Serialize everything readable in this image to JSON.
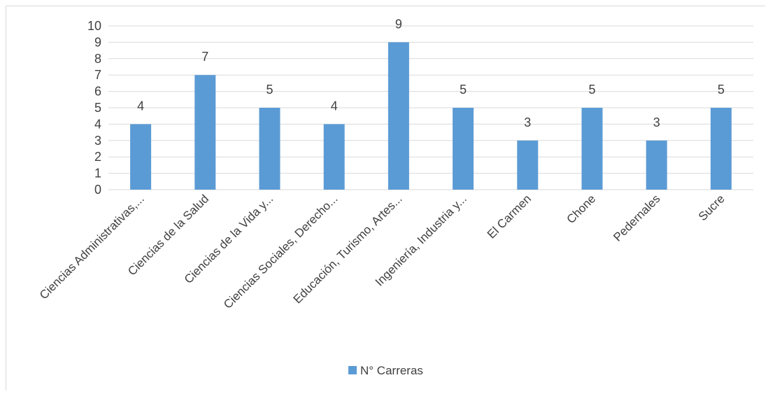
{
  "chart_data": {
    "type": "bar",
    "title": "",
    "xlabel": "",
    "ylabel": "",
    "categories": [
      "Ciencias Administrativas,...",
      "Ciencias de la Salud",
      "Ciencias de la Vida y...",
      "Ciencias Sociales, Derecho...",
      "Educación, Turismo, Artes...",
      "Ingeniería, Industria y...",
      "El Carmen",
      "Chone",
      "Pedernales",
      "Sucre"
    ],
    "series": [
      {
        "name": "N° Carreras",
        "values": [
          4,
          7,
          5,
          4,
          9,
          5,
          3,
          5,
          3,
          5
        ]
      }
    ],
    "ylim": [
      0,
      10
    ],
    "y_ticks": [
      0,
      1,
      2,
      3,
      4,
      5,
      6,
      7,
      8,
      9,
      10
    ],
    "grid": true,
    "legend_position": "bottom",
    "data_labels": true,
    "colors": {
      "bar": "#5b9bd5",
      "grid": "#d9d9d9",
      "text": "#404040"
    }
  }
}
